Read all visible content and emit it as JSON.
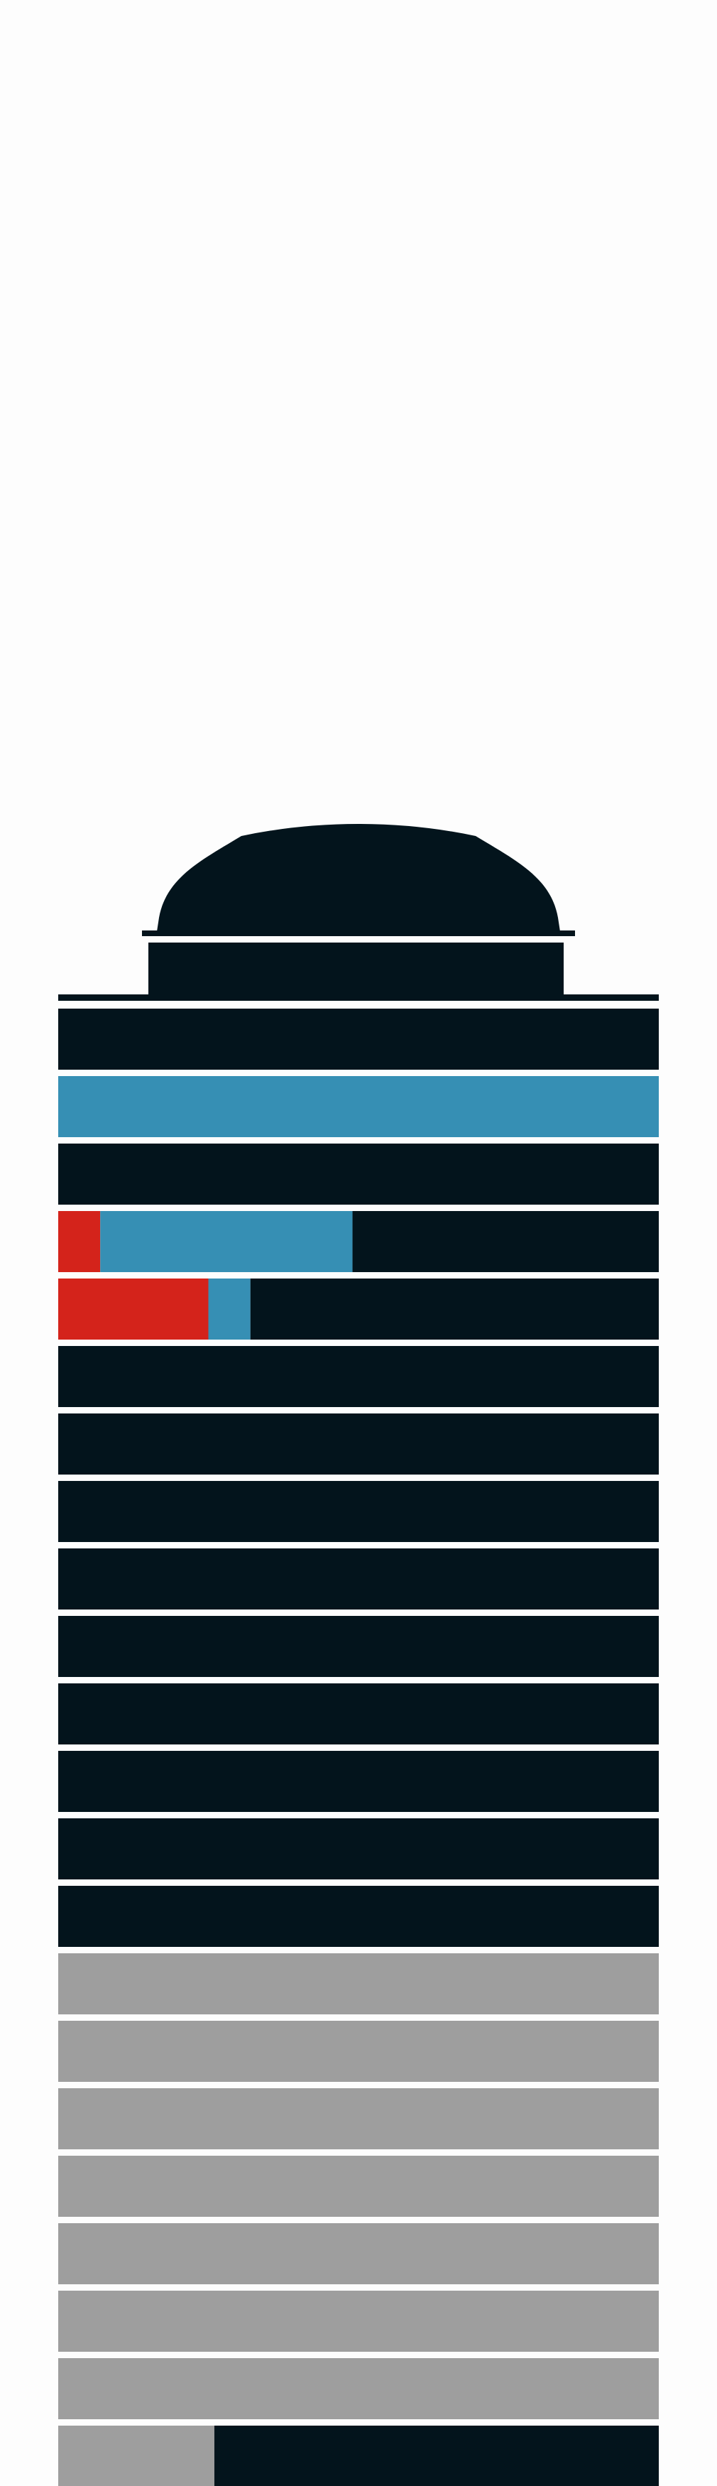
{
  "colors": {
    "background": "#fdfdfd",
    "dark": "#03141c",
    "blue": "#368fb4",
    "red": "#d4231b",
    "gray": "#9e9e9e",
    "divider": "#e8e8e8"
  },
  "tower": {
    "top_floor": {
      "fill": [
        {
          "color": "dark",
          "fraction": 1.0
        }
      ]
    },
    "floors": [
      {
        "fill": [
          {
            "color": "dark",
            "fraction": 1.0
          }
        ]
      },
      {
        "fill": [
          {
            "color": "blue",
            "fraction": 1.0
          }
        ]
      },
      {
        "fill": [
          {
            "color": "dark",
            "fraction": 1.0
          }
        ]
      },
      {
        "fill": [
          {
            "color": "red",
            "fraction": 0.07
          },
          {
            "color": "blue",
            "fraction": 0.42
          },
          {
            "color": "dark",
            "fraction": 0.51
          }
        ]
      },
      {
        "fill": [
          {
            "color": "red",
            "fraction": 0.25
          },
          {
            "color": "blue",
            "fraction": 0.07
          },
          {
            "color": "dark",
            "fraction": 0.68
          }
        ]
      },
      {
        "fill": [
          {
            "color": "dark",
            "fraction": 1.0
          }
        ]
      },
      {
        "fill": [
          {
            "color": "dark",
            "fraction": 1.0
          }
        ]
      },
      {
        "fill": [
          {
            "color": "dark",
            "fraction": 1.0
          }
        ]
      },
      {
        "fill": [
          {
            "color": "dark",
            "fraction": 1.0
          }
        ]
      },
      {
        "fill": [
          {
            "color": "dark",
            "fraction": 1.0
          }
        ]
      },
      {
        "fill": [
          {
            "color": "dark",
            "fraction": 1.0
          }
        ]
      },
      {
        "fill": [
          {
            "color": "dark",
            "fraction": 1.0
          }
        ]
      },
      {
        "fill": [
          {
            "color": "dark",
            "fraction": 1.0
          }
        ]
      },
      {
        "fill": [
          {
            "color": "dark",
            "fraction": 1.0
          }
        ]
      },
      {
        "fill": [
          {
            "color": "gray",
            "fraction": 1.0
          }
        ]
      },
      {
        "fill": [
          {
            "color": "gray",
            "fraction": 1.0
          }
        ]
      },
      {
        "fill": [
          {
            "color": "gray",
            "fraction": 1.0
          }
        ]
      },
      {
        "fill": [
          {
            "color": "gray",
            "fraction": 1.0
          }
        ]
      },
      {
        "fill": [
          {
            "color": "gray",
            "fraction": 1.0
          }
        ]
      },
      {
        "fill": [
          {
            "color": "gray",
            "fraction": 1.0
          }
        ]
      },
      {
        "fill": [
          {
            "color": "gray",
            "fraction": 1.0
          }
        ]
      },
      {
        "fill": [
          {
            "color": "gray",
            "fraction": 0.26
          },
          {
            "color": "dark",
            "fraction": 0.74
          }
        ]
      }
    ]
  }
}
